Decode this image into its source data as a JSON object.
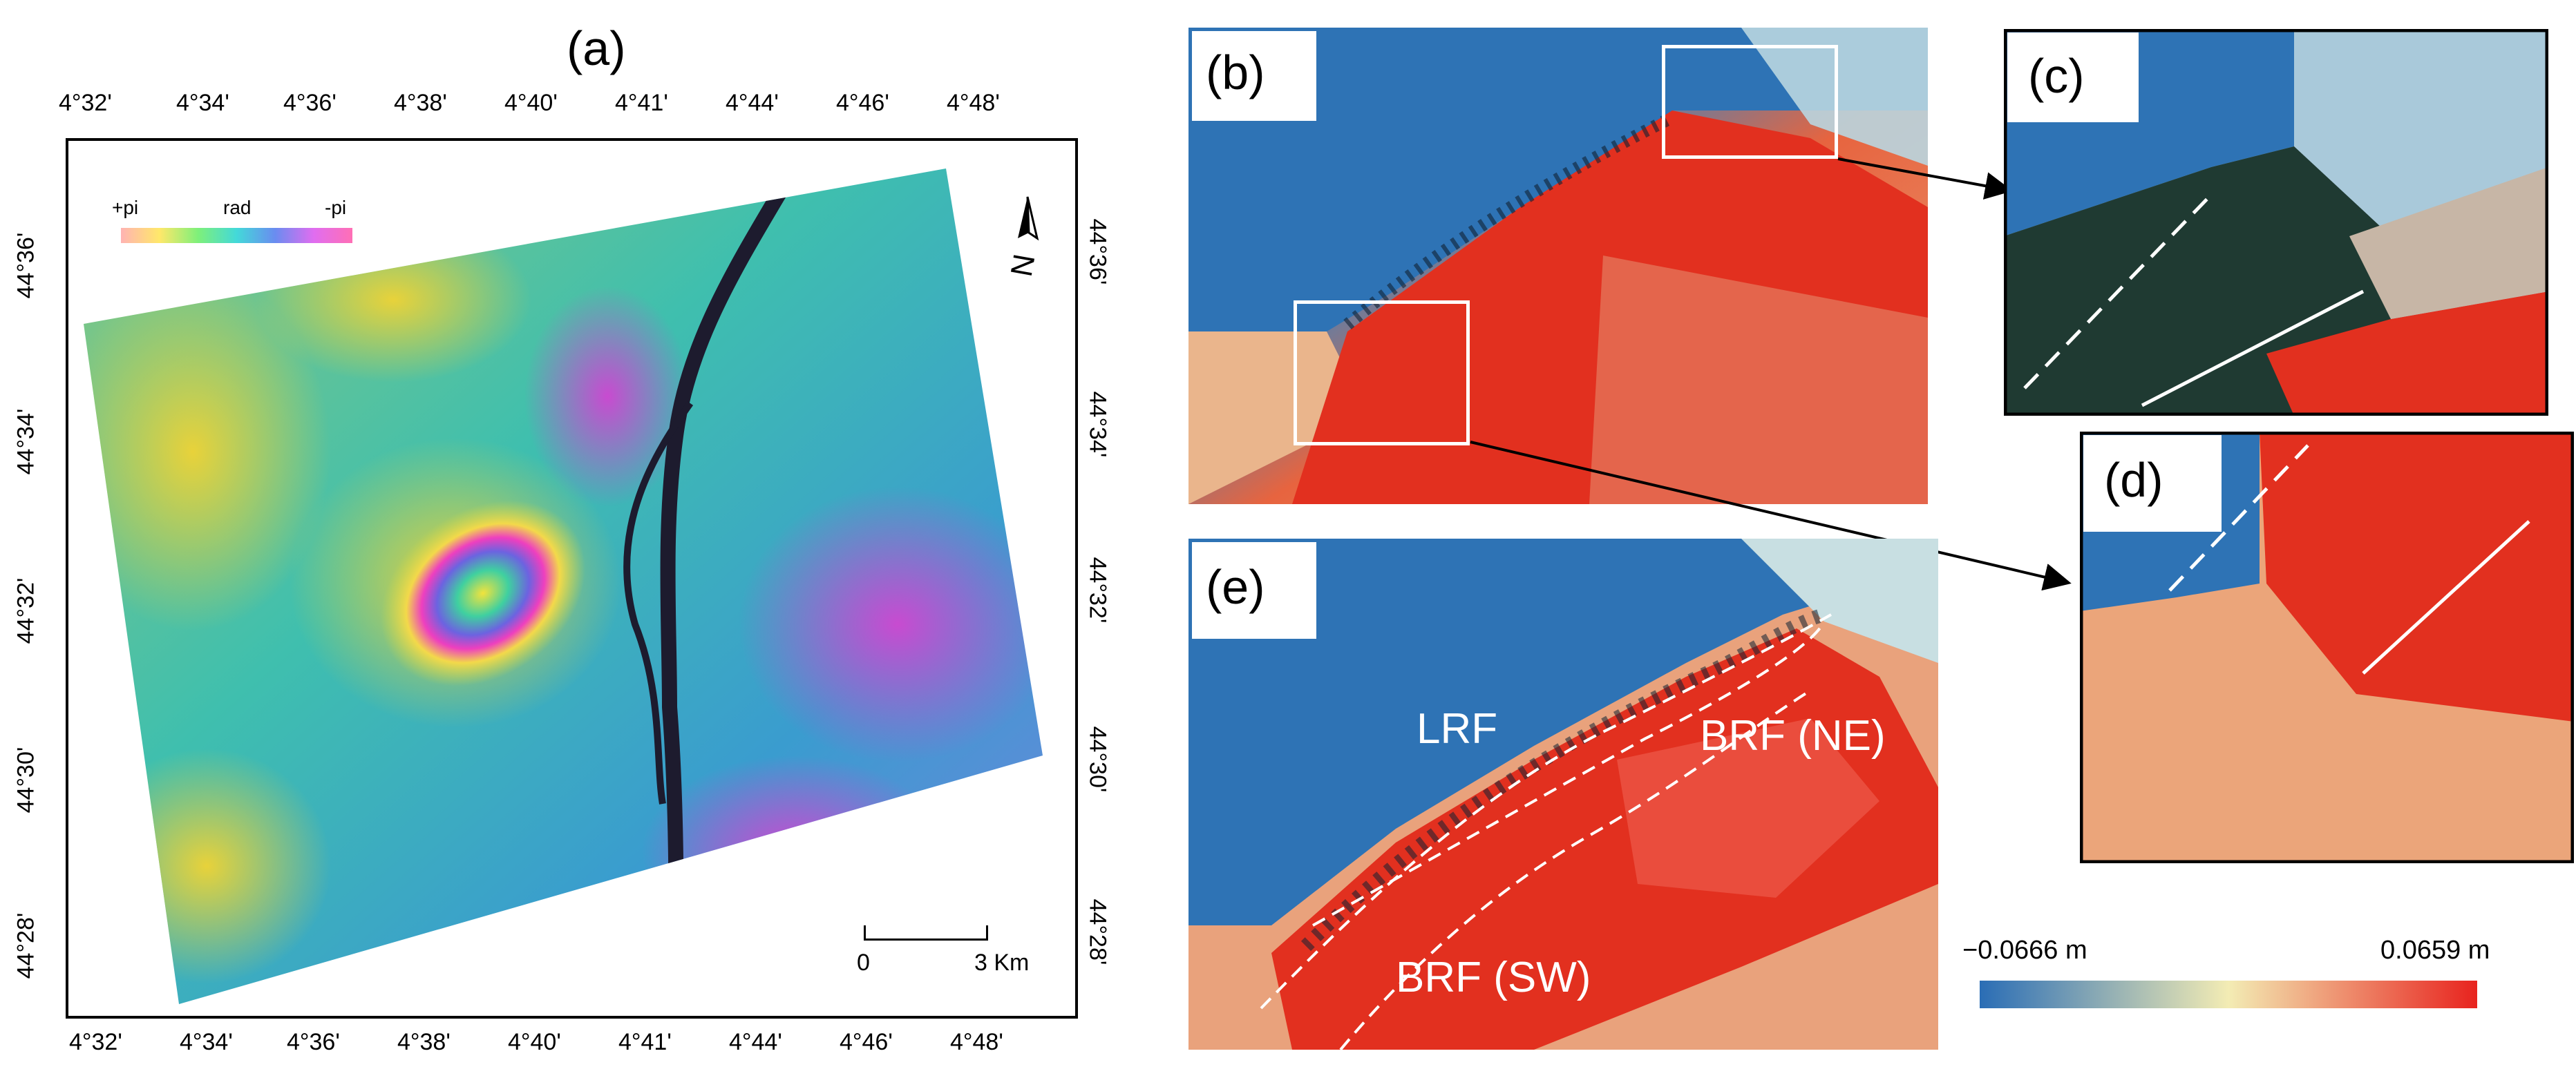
{
  "panel_a": {
    "letter": "(a)",
    "x_ticks_top": [
      "4°32'",
      "4°34'",
      "4°36'",
      "4°38'",
      "4°40'",
      "4°41'",
      "4°44'",
      "4°46'",
      "4°48'"
    ],
    "x_ticks_bottom": [
      "4°32'",
      "4°34'",
      "4°36'",
      "4°38'",
      "4°40'",
      "4°41'",
      "4°44'",
      "4°46'",
      "4°48'"
    ],
    "y_ticks_left": [
      "44°36'",
      "44°34'",
      "44°32'",
      "44°30'",
      "44°28'"
    ],
    "y_ticks_right": [
      "44°36'",
      "44°34'",
      "44°32'",
      "44°30'",
      "44°28'"
    ],
    "phase_legend": {
      "left": "+pi",
      "middle": "rad",
      "right": "-pi"
    },
    "scalebar": {
      "start": "0",
      "end": "3 Km"
    },
    "north_icon": "north-arrow-icon"
  },
  "panel_b": {
    "letter": "(b)"
  },
  "panel_c": {
    "letter": "(c)"
  },
  "panel_d": {
    "letter": "(d)"
  },
  "panel_e": {
    "letter": "(e)",
    "labels": {
      "lrf": "LRF",
      "brf_ne": "BRF (NE)",
      "brf_sw": "BRF (SW)"
    }
  },
  "colorbar": {
    "min_label": "−0.0666 m",
    "max_label": "0.0659 m",
    "colors": [
      "#2a6db5",
      "#f3ecb4",
      "#e8231e"
    ]
  }
}
